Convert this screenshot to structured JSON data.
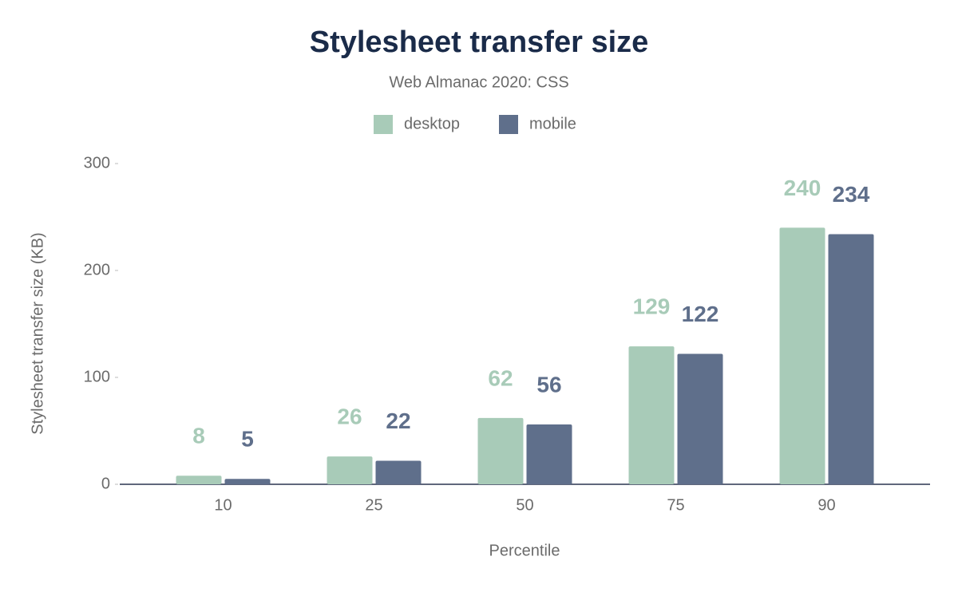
{
  "chart_data": {
    "type": "bar",
    "title": "Stylesheet transfer size",
    "subtitle": "Web Almanac 2020: CSS",
    "x_label": "Percentile",
    "y_label": "Stylesheet transfer size (KB)",
    "categories": [
      "10",
      "25",
      "50",
      "75",
      "90"
    ],
    "series": [
      {
        "name": "desktop",
        "color": "#a8cbb8",
        "values": [
          8,
          26,
          62,
          129,
          240
        ]
      },
      {
        "name": "mobile",
        "color": "#5f6f8b",
        "values": [
          5,
          22,
          56,
          122,
          234
        ]
      }
    ],
    "ylim": [
      0,
      300
    ],
    "yticks": [
      0,
      100,
      200,
      300
    ],
    "grid": false,
    "legend": "top"
  }
}
